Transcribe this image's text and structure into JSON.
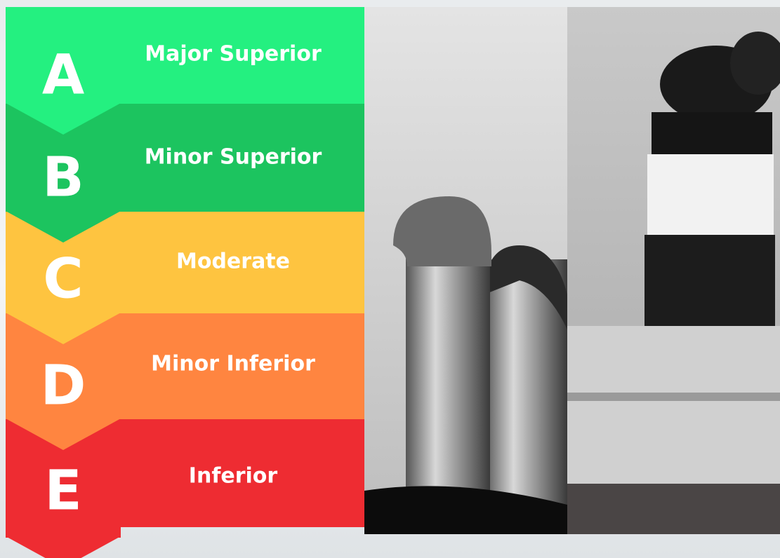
{
  "ratings": [
    {
      "letter": "A",
      "label": "Major Superior"
    },
    {
      "letter": "B",
      "label": "Minor Superior"
    },
    {
      "letter": "C",
      "label": "Moderate"
    },
    {
      "letter": "D",
      "label": "Minor Inferior"
    },
    {
      "letter": "E",
      "label": "Inferior"
    }
  ]
}
